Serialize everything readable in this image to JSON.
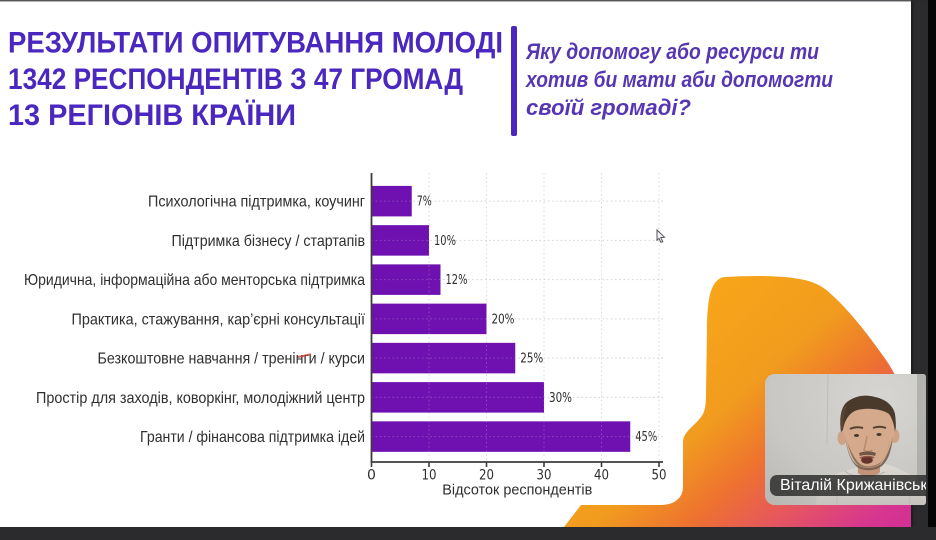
{
  "slide": {
    "header": {
      "title_lines": [
        "РЕЗУЛЬТАТИ ОПИТУВАННЯ МОЛОДІ",
        "1342 РЕСПОНДЕНТІВ З 47 ГРОМАД",
        "13 РЕГІОНІВ КРАЇНИ"
      ]
    },
    "question": {
      "lines": [
        "Яку допомогу або ресурси ти",
        "хотив би мати аби допомогти",
        "своїй громаді?"
      ]
    }
  },
  "chart_data": {
    "type": "bar",
    "orientation": "horizontal",
    "categories": [
      "Психологічна підтримка, коучинг",
      "Підтримка бізнесу / стартапів",
      "Юридична, інформаційна або менторська підтримка",
      "Практика, стажування, кар’єрні консультації",
      "Безкоштовне навчання / тренінги / курси",
      "Простір для заходів, коворкінг, молодіжний центр",
      "Гранти / фінансова підтримка ідей"
    ],
    "values": [
      7,
      10,
      12,
      20,
      25,
      30,
      45
    ],
    "value_labels": [
      "7%",
      "10%",
      "12%",
      "20%",
      "25%",
      "30%",
      "45%"
    ],
    "xlabel": "Відсоток респондентів",
    "x_ticks": [
      0,
      10,
      20,
      30,
      40,
      50
    ],
    "xlim": [
      0,
      50
    ],
    "grid": true,
    "legend": false
  },
  "webcam": {
    "participant_name": "Віталій Крижанівськ"
  },
  "colors": {
    "title": "#4a28c0",
    "question": "#5636b2",
    "bar": "#6e11b0",
    "chart_text": "#2f2f2f",
    "grid": "#d2d2d2",
    "blob_orange": "#f9a619",
    "blob_mid": "#ee7130",
    "blob_magenta": "#d63590",
    "frame_dark": "#2b2b2d"
  }
}
